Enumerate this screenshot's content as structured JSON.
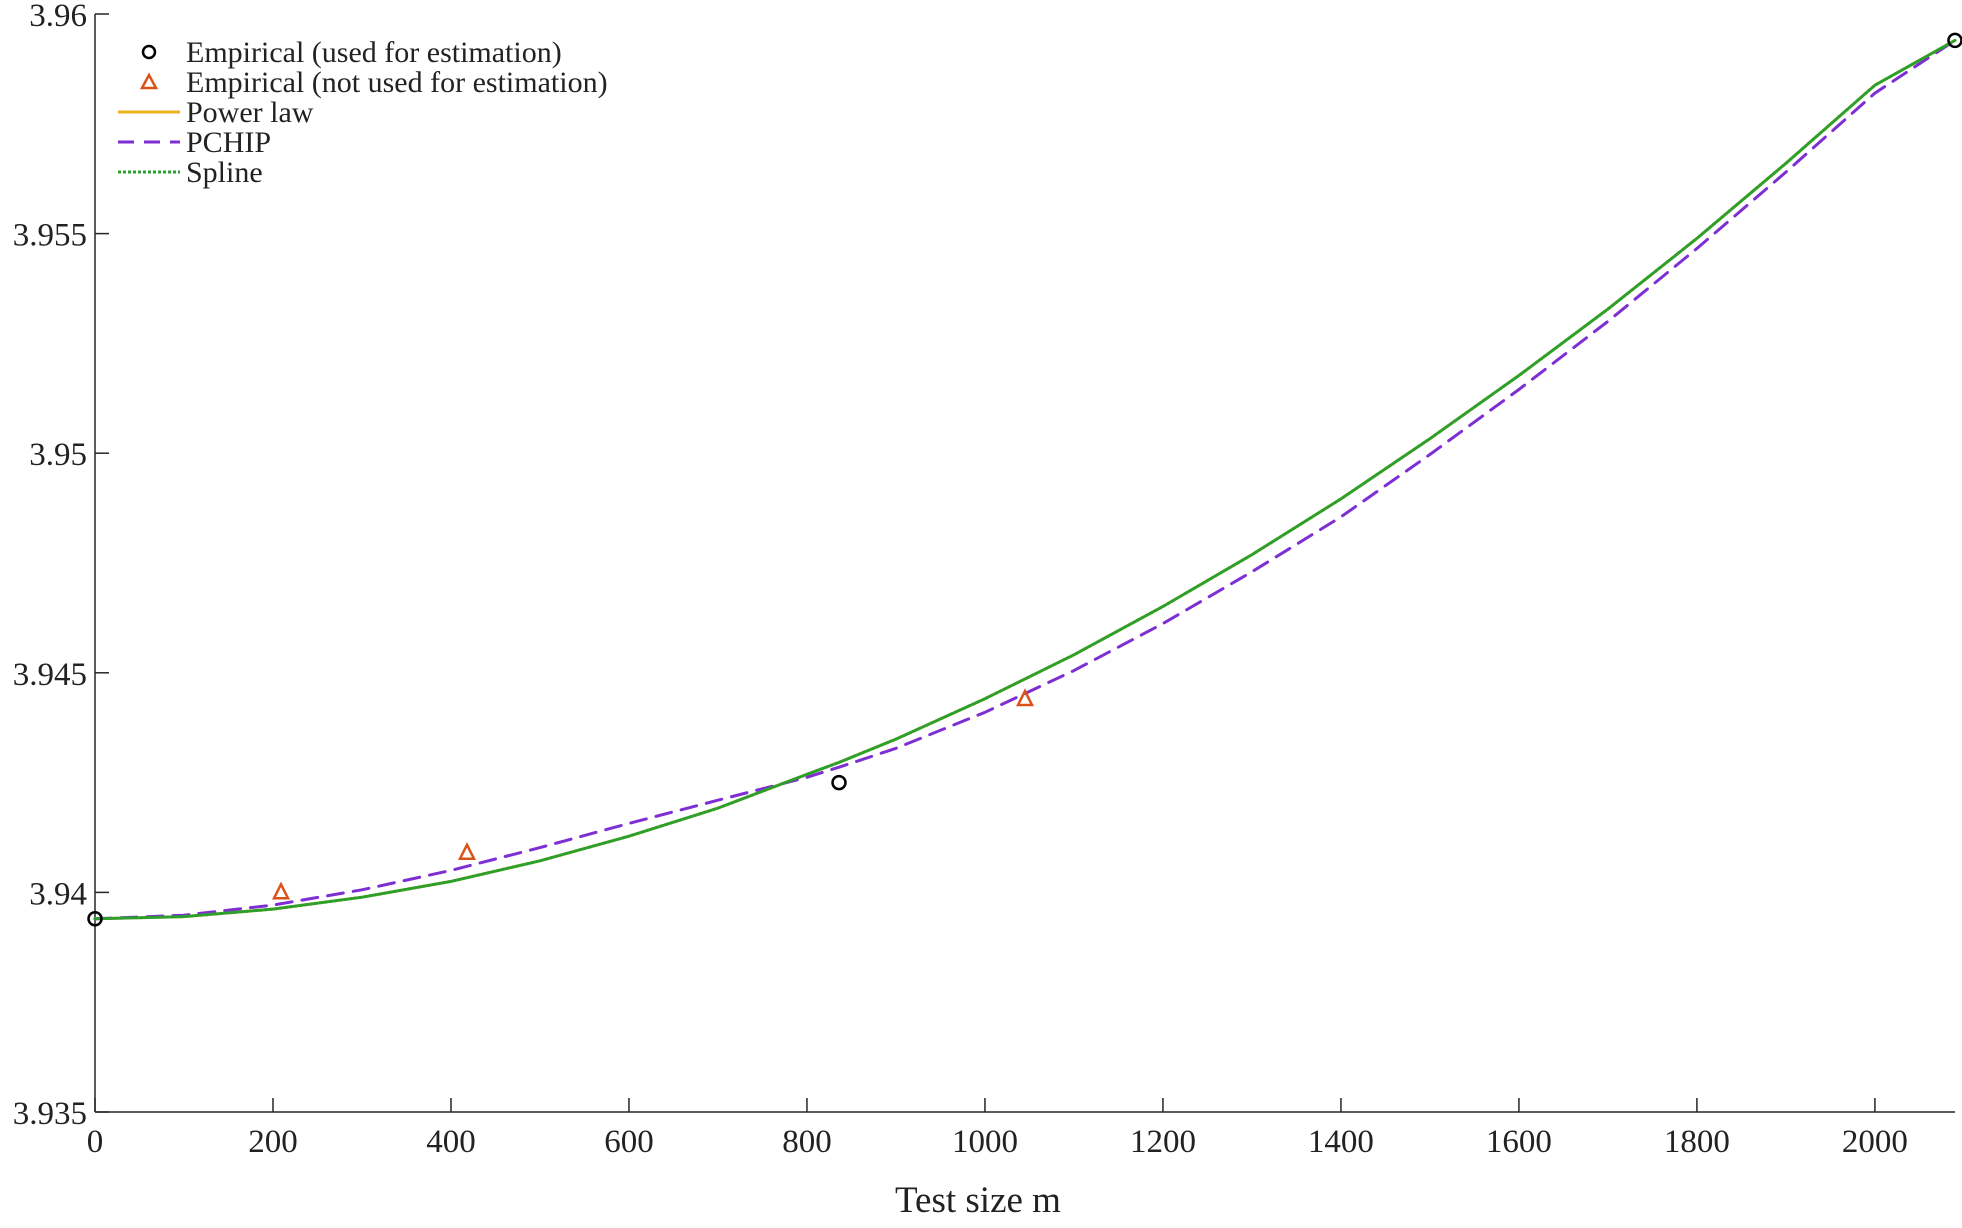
{
  "chart_data": {
    "type": "line",
    "title": "",
    "xlabel": "Test size m",
    "ylabel": "",
    "xlim": [
      0,
      2090
    ],
    "ylim": [
      3.935,
      3.96
    ],
    "grid": false,
    "legend_position": "top-left",
    "x_ticks": [
      "0",
      "200",
      "400",
      "600",
      "800",
      "1000",
      "1200",
      "1400",
      "1600",
      "1800",
      "2000"
    ],
    "y_ticks": [
      "3.935",
      "3.94",
      "3.945",
      "3.95",
      "3.955",
      "3.96"
    ],
    "colors": {
      "axis": "#262626",
      "empirical_used": "#000000",
      "empirical_not_used": "#d95319",
      "power_law": "#edb120",
      "pchip": "#7e2fd4",
      "spline": "#2ca02c"
    },
    "series": [
      {
        "name": "Empirical (used for estimation)",
        "kind": "marker",
        "marker": "circle",
        "x": [
          0,
          836,
          2090
        ],
        "y": [
          3.9394,
          3.9425,
          3.9594
        ]
      },
      {
        "name": "Empirical (not used for estimation)",
        "kind": "marker",
        "marker": "triangle",
        "x": [
          209,
          418,
          1045
        ],
        "y": [
          3.94,
          3.9409,
          3.9444
        ]
      },
      {
        "name": "Power law",
        "kind": "line",
        "style": "solid",
        "x": [
          0,
          100,
          200,
          300,
          400,
          500,
          600,
          700,
          800,
          836,
          900,
          1000,
          1100,
          1200,
          1300,
          1400,
          1500,
          1600,
          1700,
          1800,
          1900,
          2000,
          2090
        ],
        "y": [
          3.9394,
          3.93945,
          3.93962,
          3.93989,
          3.94025,
          3.94072,
          3.94128,
          3.94192,
          3.94269,
          3.94296,
          3.94349,
          3.94441,
          3.94541,
          3.94651,
          3.94769,
          3.94896,
          3.95033,
          3.95177,
          3.95328,
          3.95489,
          3.9566,
          3.95838,
          3.9594
        ]
      },
      {
        "name": "PCHIP",
        "kind": "line",
        "style": "dashed",
        "x": [
          0,
          100,
          200,
          300,
          400,
          500,
          600,
          700,
          800,
          836,
          900,
          1000,
          1100,
          1200,
          1300,
          1400,
          1500,
          1600,
          1700,
          1800,
          1900,
          2000,
          2090
        ],
        "y": [
          3.9394,
          3.93948,
          3.93971,
          3.94006,
          3.9405,
          3.94102,
          3.94157,
          3.9421,
          3.94262,
          3.94285,
          3.94328,
          3.9441,
          3.94505,
          3.94612,
          3.9473,
          3.94855,
          3.94997,
          3.95145,
          3.953,
          3.95466,
          3.9564,
          3.9582,
          3.9594
        ]
      },
      {
        "name": "Spline",
        "kind": "line",
        "style": "dotted",
        "x": [
          0,
          100,
          200,
          300,
          400,
          500,
          600,
          700,
          800,
          836,
          900,
          1000,
          1100,
          1200,
          1300,
          1400,
          1500,
          1600,
          1700,
          1800,
          1900,
          2000,
          2090
        ],
        "y": [
          3.9394,
          3.93945,
          3.93962,
          3.93989,
          3.94025,
          3.94072,
          3.94128,
          3.94192,
          3.94269,
          3.94296,
          3.94349,
          3.94441,
          3.94541,
          3.94651,
          3.94769,
          3.94896,
          3.95033,
          3.95177,
          3.95328,
          3.95489,
          3.9566,
          3.95838,
          3.9594
        ]
      }
    ]
  }
}
